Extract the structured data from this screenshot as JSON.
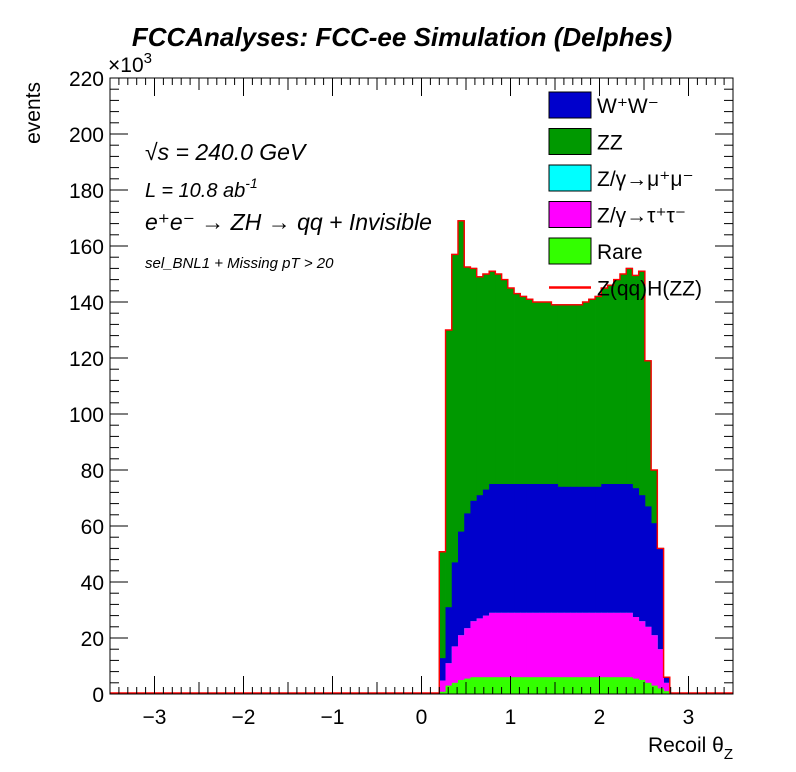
{
  "chart_data": {
    "type": "area",
    "title": "FCCAnalyses: FCC-ee Simulation (Delphes)",
    "xlabel": "Recoil θ",
    "xlabel_sub": "Z",
    "ylabel": "events",
    "y_multiplier": "×10",
    "y_multiplier_exp": "3",
    "xlim": [
      -3.5,
      3.5
    ],
    "ylim": [
      0,
      220
    ],
    "x_ticks": [
      -3,
      -2,
      -1,
      0,
      1,
      2,
      3
    ],
    "x_tick_labels": [
      "−3",
      "−2",
      "−1",
      "0",
      "1",
      "2",
      "3"
    ],
    "y_ticks": [
      0,
      20,
      40,
      60,
      80,
      100,
      120,
      140,
      160,
      180,
      200,
      220
    ],
    "y_tick_labels": [
      "0",
      "20",
      "40",
      "60",
      "80",
      "100",
      "120",
      "140",
      "160",
      "180",
      "200",
      "220"
    ],
    "stacked": true,
    "bin_edges_start": 0.2,
    "bin_width": 0.07,
    "annotations": {
      "sqrt_symbol": "√",
      "sqrt_s": "s = 240.0 GeV",
      "lumi_main": "L = 10.8 ab",
      "lumi_exp": "-1",
      "process": "e⁺e⁻ → ZH → qq + Invisible",
      "selection": "sel_BNL1 + Missing pT > 20"
    },
    "series": [
      {
        "name": "Rare",
        "color": "#33ff00",
        "values": [
          0.8,
          3,
          4,
          5,
          5.5,
          6,
          6,
          6,
          6,
          6,
          6,
          6,
          6,
          6,
          6,
          6,
          6,
          6,
          6,
          6,
          6,
          6,
          6,
          6,
          6,
          6,
          6,
          6,
          6,
          6,
          6,
          5.5,
          5,
          4,
          3,
          2,
          1
        ]
      },
      {
        "name": "Z/γ→τ⁺τ⁻",
        "color": "#ff00ff",
        "values": [
          4,
          8,
          13,
          16,
          18,
          20,
          21,
          22,
          23,
          23,
          23,
          23,
          23,
          23,
          23,
          23,
          23,
          23,
          23,
          23,
          23,
          23,
          23,
          23,
          23,
          23,
          23,
          23,
          23,
          23,
          23,
          22,
          21,
          20,
          18,
          14,
          3
        ]
      },
      {
        "name": "Z/γ→μ⁺μ⁻",
        "color": "#00ffff",
        "values": [
          0,
          0,
          0,
          0,
          0,
          0,
          0,
          0,
          0,
          0,
          0,
          0,
          0,
          0,
          0,
          0,
          0,
          0,
          0,
          0,
          0,
          0,
          0,
          0,
          0,
          0,
          0,
          0,
          0,
          0,
          0,
          0,
          0,
          0,
          0,
          0,
          0
        ]
      },
      {
        "name": "W⁺W⁻",
        "color": "#0000cc",
        "values": [
          8,
          20,
          30,
          37,
          41,
          43,
          44,
          45,
          46,
          46,
          46,
          46,
          46,
          46,
          46,
          46,
          46,
          46,
          46,
          45,
          45,
          45,
          45,
          45,
          45,
          45,
          46,
          46,
          46,
          46,
          46,
          46,
          45,
          43,
          40,
          36,
          2
        ]
      },
      {
        "name": "ZZ",
        "color": "#009900",
        "values": [
          38,
          99,
          110,
          111,
          88,
          83,
          78,
          77,
          76,
          75,
          73,
          70,
          68,
          67,
          66,
          65,
          65,
          65,
          64,
          65,
          65,
          65,
          65,
          66,
          67,
          68,
          70,
          71,
          73,
          75,
          77,
          76,
          80,
          52,
          19,
          0,
          0
        ]
      },
      {
        "name": "Z(qq)H(ZZ)",
        "color": "#ff0000",
        "style": "line",
        "values": []
      }
    ],
    "legend": {
      "placement": "top-right",
      "order": [
        "W⁺W⁻",
        "ZZ",
        "Z/γ→μ⁺μ⁻",
        "Z/γ→τ⁺τ⁻",
        "Rare",
        "Z(qq)H(ZZ)"
      ],
      "labels": [
        {
          "main": "W",
          "parts": [
            [
              "W",
              ""
            ],
            [
              "+",
              "sup"
            ],
            [
              "W",
              ""
            ],
            [
              "-",
              "sup"
            ]
          ]
        },
        {
          "parts": [
            [
              "ZZ",
              ""
            ]
          ]
        },
        {
          "parts": [
            [
              "Z/γ→μ",
              ""
            ],
            [
              "+",
              "sup"
            ],
            [
              "μ",
              ""
            ],
            [
              "-",
              "sup"
            ]
          ]
        },
        {
          "parts": [
            [
              "Z/γ→τ",
              ""
            ],
            [
              "+",
              "sup"
            ],
            [
              "τ",
              ""
            ],
            [
              "-",
              "sup"
            ]
          ]
        },
        {
          "parts": [
            [
              "Rare",
              ""
            ]
          ]
        },
        {
          "parts": [
            [
              "Z(qq)H(ZZ)",
              ""
            ]
          ]
        }
      ]
    }
  }
}
